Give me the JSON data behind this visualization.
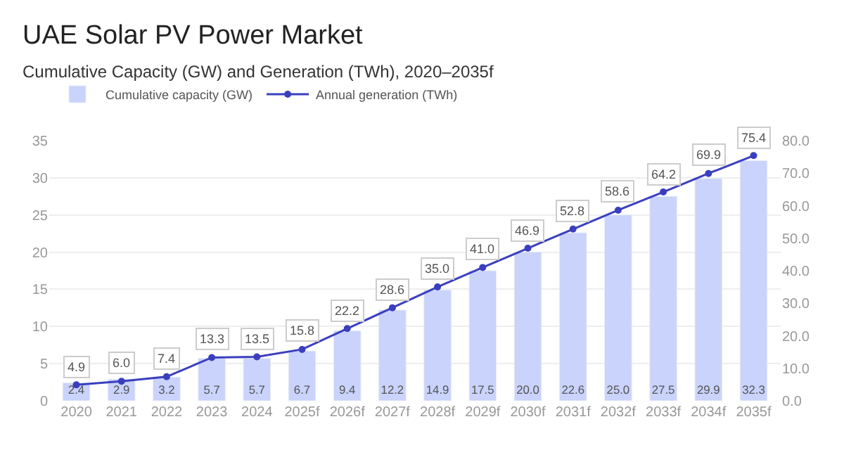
{
  "chart_data": {
    "type": "bar",
    "title": "UAE Solar PV Power Market",
    "subtitle": "Cumulative Capacity (GW) and Generation (TWh), 2020–2035f",
    "categories": [
      "2020",
      "2021",
      "2022",
      "2023",
      "2024",
      "2025f",
      "2026f",
      "2027f",
      "2028f",
      "2029f",
      "2030f",
      "2031f",
      "2032f",
      "2033f",
      "2034f",
      "2035f"
    ],
    "series": [
      {
        "name": "Cumulative capacity (GW)",
        "color": "#c9d3fb",
        "values": [
          2.4,
          2.9,
          3.2,
          5.7,
          5.7,
          6.7,
          9.4,
          12.2,
          14.9,
          17.5,
          20.0,
          22.6,
          25.0,
          27.5,
          29.9,
          32.3
        ],
        "value_labels": [
          "2.4",
          "2.9",
          "3.2",
          "5.7",
          "5.7",
          "6.7",
          "9.4",
          "12.2",
          "14.9",
          "17.5",
          "20.0",
          "22.6",
          "25.0",
          "27.5",
          "29.9",
          "32.3"
        ]
      },
      {
        "name": "Annual generation (TWh)",
        "type": "line",
        "axis": "y2",
        "color": "#3a3fbf",
        "values": [
          4.9,
          6.0,
          7.4,
          13.3,
          13.5,
          15.8,
          22.2,
          28.6,
          35.0,
          41.0,
          46.9,
          52.8,
          58.6,
          64.2,
          69.9,
          75.4
        ],
        "value_labels": [
          "4.9",
          "6.0",
          "7.4",
          "13.3",
          "13.5",
          "15.8",
          "22.2",
          "28.6",
          "35.0",
          "41.0",
          "46.9",
          "52.8",
          "58.6",
          "64.2",
          "69.9",
          "75.4"
        ]
      }
    ],
    "ylim": [
      0,
      35
    ],
    "yticks": [
      0,
      5,
      10,
      15,
      20,
      25,
      30,
      35
    ],
    "y2lim": [
      0,
      80
    ],
    "y2ticks": [
      {
        "value": 0,
        "label": "0.0"
      },
      {
        "value": 10,
        "label": "10.0"
      },
      {
        "value": 20,
        "label": "20.0"
      },
      {
        "value": 30,
        "label": "30.0"
      },
      {
        "value": 40,
        "label": "40.0"
      },
      {
        "value": 50,
        "label": "50.0"
      },
      {
        "value": 60,
        "label": "60.0"
      },
      {
        "value": 70,
        "label": "70.0"
      },
      {
        "value": 80,
        "label": "80.0"
      }
    ],
    "grid": "y",
    "legend": "top left",
    "marker": "circle",
    "line_style": "solid"
  }
}
